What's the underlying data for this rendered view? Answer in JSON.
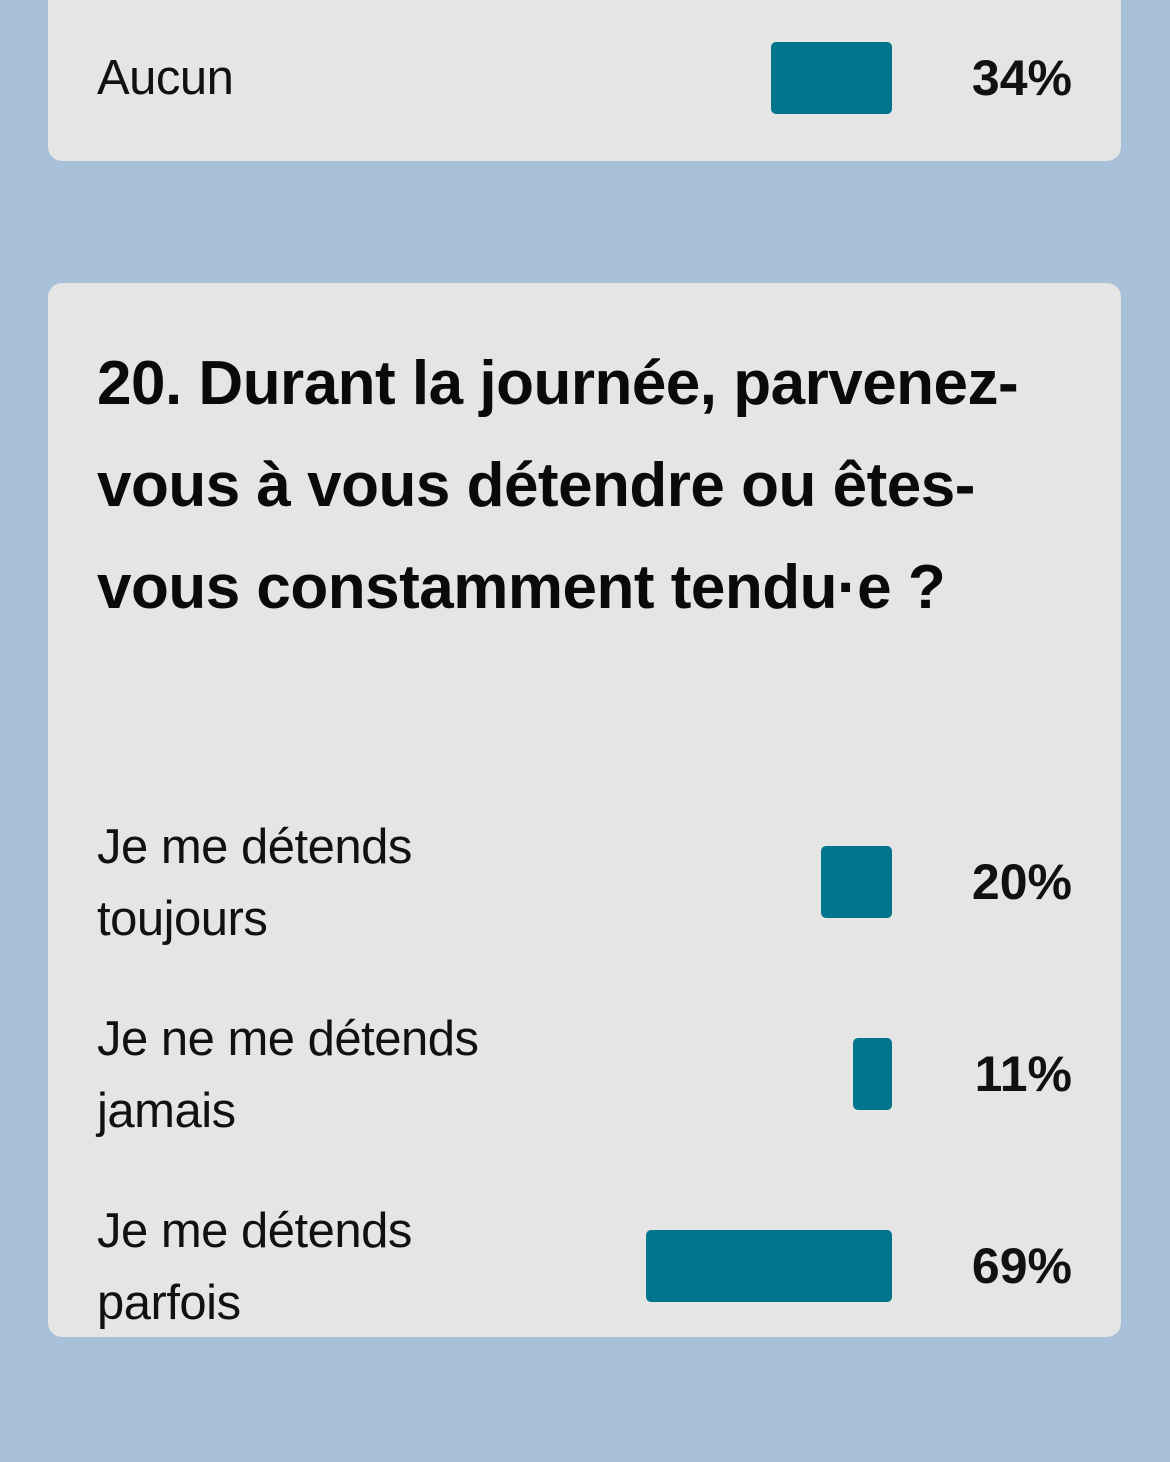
{
  "colors": {
    "background": "#a8c1d8",
    "card": "#e5e5e5",
    "bar": "#00758b",
    "text": "#111111"
  },
  "previous_question": {
    "options": [
      {
        "label": "Aucun",
        "percent_label": "34%",
        "value": 34
      }
    ]
  },
  "question": {
    "title": "20. Durant la journée, parvenez-vous à vous détendre ou êtes-vous constamment tendu·e ?",
    "options": [
      {
        "label": "Je me détends toujours",
        "percent_label": "20%",
        "value": 20
      },
      {
        "label": "Je ne me détends jamais",
        "percent_label": "11%",
        "value": 11
      },
      {
        "label": "Je me détends parfois",
        "percent_label": "69%",
        "value": 69
      }
    ]
  },
  "chart_data": [
    {
      "type": "bar",
      "orientation": "horizontal",
      "title": "",
      "categories": [
        "Aucun"
      ],
      "values": [
        34
      ],
      "unit": "%",
      "partial": true
    },
    {
      "type": "bar",
      "orientation": "horizontal",
      "title": "20. Durant la journée, parvenez-vous à vous détendre ou êtes-vous constamment tendu·e ?",
      "categories": [
        "Je me détends toujours",
        "Je ne me détends jamais",
        "Je me détends parfois"
      ],
      "values": [
        20,
        11,
        69
      ],
      "unit": "%",
      "xlabel": "",
      "ylabel": "",
      "xlim": [
        0,
        100
      ],
      "grid": false,
      "legend": false
    }
  ]
}
